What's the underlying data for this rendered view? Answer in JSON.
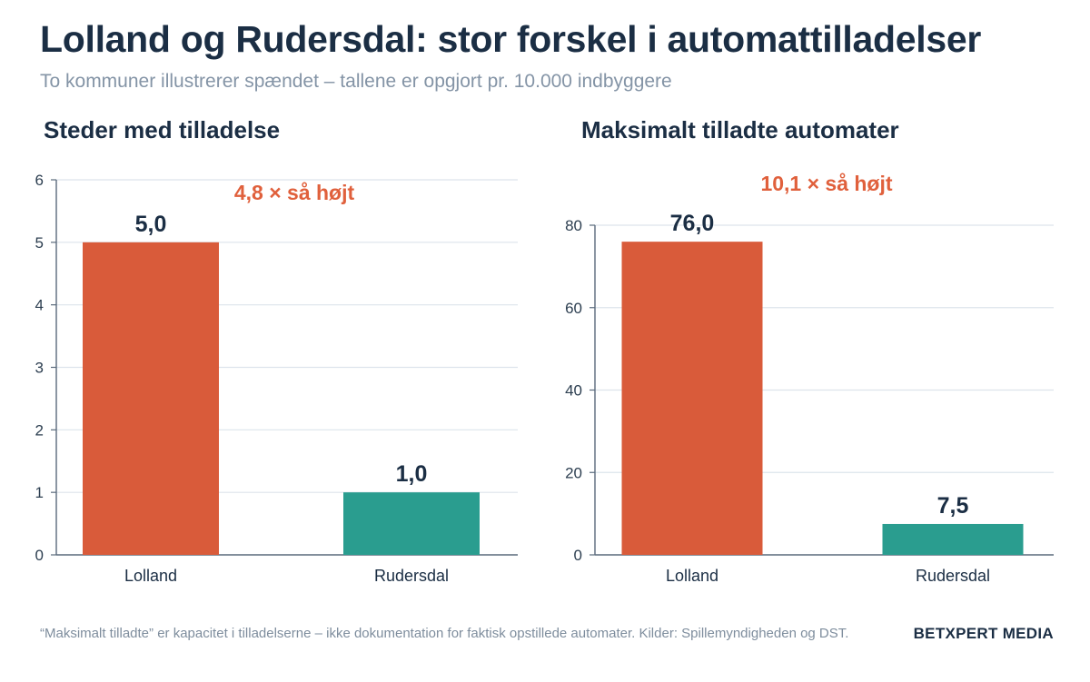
{
  "header": {
    "title": "Lolland og Rudersdal: stor forskel i automattilladelser",
    "subtitle": "To kommuner illustrerer spændet – tallene er opgjort pr. 10.000 indbyggere"
  },
  "chart_data": [
    {
      "type": "bar",
      "title": "Steder med tilladelse",
      "categories": [
        "Lolland",
        "Rudersdal"
      ],
      "values": [
        5.0,
        1.0
      ],
      "value_labels": [
        "5,0",
        "1,0"
      ],
      "colors": [
        "#d95b3a",
        "#2a9d8f"
      ],
      "ylim": [
        0,
        6
      ],
      "yticks": [
        0,
        1,
        2,
        3,
        4,
        5,
        6
      ],
      "annotation": "4,8 × så højt",
      "grid": true
    },
    {
      "type": "bar",
      "title": "Maksimalt tilladte automater",
      "categories": [
        "Lolland",
        "Rudersdal"
      ],
      "values": [
        76.0,
        7.5
      ],
      "value_labels": [
        "76,0",
        "7,5"
      ],
      "colors": [
        "#d95b3a",
        "#2a9d8f"
      ],
      "ylim": [
        0,
        80
      ],
      "yticks": [
        0,
        20,
        40,
        60,
        80
      ],
      "annotation": "10,1 × så højt",
      "grid": true
    }
  ],
  "footer": {
    "note": "“Maksimalt tilladte” er kapacitet i tilladelserne – ikke dokumentation for faktisk opstillede automater. Kilder: Spillemyndigheden og DST.",
    "brand": "BETXPERT MEDIA"
  },
  "colors": {
    "accent_orange": "#d95b3a",
    "accent_teal": "#2a9d8f",
    "annotation": "#e0603c",
    "title": "#1b2e44"
  }
}
